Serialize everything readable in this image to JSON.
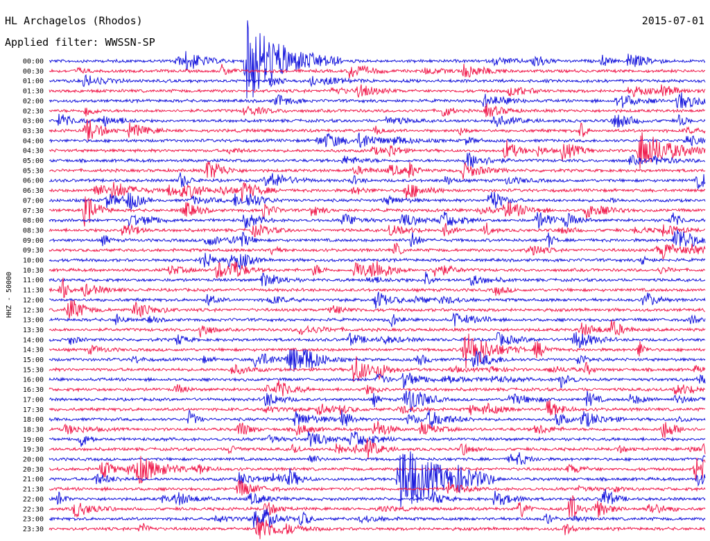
{
  "header": {
    "station": "HL Archagelos (Rhodos)",
    "date": "2015-07-01",
    "filter": "Applied filter: WWSSN-SP"
  },
  "colors": {
    "trace_a": "#1414dc",
    "trace_b": "#f0194b"
  },
  "chart_data": {
    "type": "line",
    "title": "HL Archagelos (Rhodos)",
    "subtitle": "Applied filter: WWSSN-SP",
    "ylabel": "HHZ - 50000",
    "row_labels": [
      "00:00",
      "00:30",
      "01:00",
      "01:30",
      "02:00",
      "02:30",
      "03:00",
      "03:30",
      "04:00",
      "04:30",
      "05:00",
      "05:30",
      "06:00",
      "06:30",
      "07:00",
      "07:30",
      "08:00",
      "08:30",
      "09:00",
      "09:30",
      "10:00",
      "10:30",
      "11:00",
      "11:30",
      "12:00",
      "12:30",
      "13:00",
      "13:30",
      "14:00",
      "14:30",
      "15:00",
      "15:30",
      "16:00",
      "16:30",
      "17:00",
      "17:30",
      "18:00",
      "18:30",
      "19:00",
      "19:30",
      "20:00",
      "20:30",
      "21:00",
      "21:30",
      "22:00",
      "22:30",
      "23:00",
      "23:30"
    ],
    "series_colors_alternate": [
      "#1414dc",
      "#f0194b"
    ],
    "notable_events": [
      {
        "row": "00:00",
        "minute": 9,
        "amplitude": 1.0
      },
      {
        "row": "21:00",
        "minute": 16,
        "amplitude": 1.0
      },
      {
        "row": "04:30",
        "minute": 27,
        "amplitude": 0.5
      },
      {
        "row": "14:30",
        "minute": 19,
        "amplitude": 0.35
      },
      {
        "row": "20:30",
        "minute": 4,
        "amplitude": 0.3
      }
    ],
    "grid": false,
    "legend": "none"
  }
}
